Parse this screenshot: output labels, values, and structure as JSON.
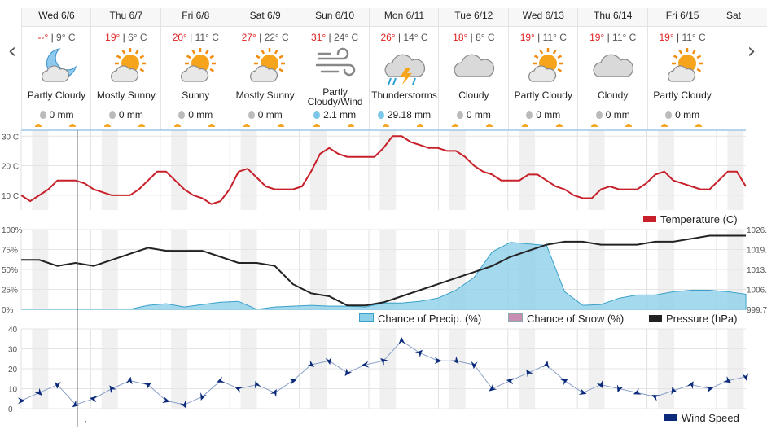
{
  "nav": {
    "prev_label": "‹",
    "next_label": "›"
  },
  "days": [
    {
      "name": "Wed 6/6",
      "hi": "--°",
      "lo": "9° C",
      "icon": "moon-cloud-icon",
      "cond": "Partly Cloudy",
      "precip": "0 mm"
    },
    {
      "name": "Thu 6/7",
      "hi": "19°",
      "lo": "6° C",
      "icon": "sun-icon",
      "cond": "Mostly Sunny",
      "precip": "0 mm"
    },
    {
      "name": "Fri 6/8",
      "hi": "20°",
      "lo": "11° C",
      "icon": "sun-icon",
      "cond": "Sunny",
      "precip": "0 mm"
    },
    {
      "name": "Sat 6/9",
      "hi": "27°",
      "lo": "22° C",
      "icon": "sun-icon",
      "cond": "Mostly Sunny",
      "precip": "0 mm"
    },
    {
      "name": "Sun 6/10",
      "hi": "31°",
      "lo": "24° C",
      "icon": "wind-icon",
      "cond": "Partly Cloudy/Wind",
      "precip": "2.1 mm",
      "wet": true
    },
    {
      "name": "Mon 6/11",
      "hi": "26°",
      "lo": "14° C",
      "icon": "thunderstorm-icon",
      "cond": "Thunderstorms",
      "precip": "29.18 mm",
      "wet": true
    },
    {
      "name": "Tue 6/12",
      "hi": "18°",
      "lo": "8° C",
      "icon": "cloud-icon",
      "cond": "Cloudy",
      "precip": "0 mm"
    },
    {
      "name": "Wed 6/13",
      "hi": "19°",
      "lo": "11° C",
      "icon": "sun-cloud-icon",
      "cond": "Partly Cloudy",
      "precip": "0 mm"
    },
    {
      "name": "Thu 6/14",
      "hi": "19°",
      "lo": "11° C",
      "icon": "cloud-icon",
      "cond": "Cloudy",
      "precip": "0 mm"
    },
    {
      "name": "Fri 6/15",
      "hi": "19°",
      "lo": "11° C",
      "icon": "sun-cloud-icon",
      "cond": "Partly Cloudy",
      "precip": "0 mm"
    },
    {
      "name": "Sat"
    }
  ],
  "temp_chart": {
    "yticks": [
      "30 C",
      "20 C",
      "10 C"
    ],
    "legend": "Temperature (C)",
    "color": "#c8202a"
  },
  "precip_chart": {
    "yticks": [
      "100%",
      "75%",
      "50%",
      "25%",
      "0%"
    ],
    "ryticks": [
      "1026.",
      "1019.",
      "1013.",
      "1006.",
      "999.7"
    ],
    "legend_precip": "Chance of Precip. (%)",
    "legend_snow": "Chance of Snow (%)",
    "legend_pressure": "Pressure (hPa)",
    "precip_color": "#8dd0ea",
    "snow_color": "#c98fb3",
    "pressure_color": "#222222"
  },
  "wind_chart": {
    "yticks": [
      "40",
      "30",
      "20",
      "10",
      "0"
    ],
    "legend": "Wind Speed",
    "color": "#0b2a7a",
    "cursor_arrow": "→"
  },
  "chart_data": [
    {
      "type": "line",
      "name_legend": "Temperature (C)",
      "ylim": [
        5,
        32
      ],
      "x": [
        0,
        0.5,
        1,
        1.5,
        2,
        2.5,
        3,
        3.5,
        4,
        4.5,
        5,
        5.5,
        6,
        6.5,
        7,
        7.5,
        8,
        8.5,
        9,
        9.5,
        10,
        10.5,
        11,
        11.5,
        12,
        12.5,
        13,
        13.5,
        14,
        14.5,
        15,
        15.5,
        16,
        16.5,
        17,
        17.5,
        18,
        18.5,
        19,
        19.5,
        20,
        20.5,
        21,
        21.5,
        22,
        22.5,
        23,
        23.5,
        24,
        24.5,
        25,
        25.5,
        26,
        26.5,
        27,
        27.5,
        28,
        28.5,
        29,
        29.5,
        30,
        30.5,
        31,
        31.5,
        32,
        32.5,
        33,
        33.5,
        34,
        34.5,
        35,
        35.5,
        36,
        36.5,
        37,
        37.5,
        38,
        38.5,
        39,
        39.5,
        40
      ],
      "series": [
        {
          "values": [
            10,
            8,
            10,
            12,
            15,
            15,
            15,
            14,
            12,
            11,
            10,
            10,
            10,
            12,
            15,
            18,
            18,
            15,
            12,
            10,
            9,
            7,
            8,
            12,
            18,
            19,
            16,
            13,
            12,
            12,
            12,
            13,
            18,
            24,
            26,
            24,
            23,
            23,
            23,
            23,
            26,
            30,
            30,
            28,
            27,
            26,
            26,
            25,
            25,
            23,
            20,
            18,
            17,
            15,
            15,
            15,
            17,
            17,
            15,
            13,
            12,
            10,
            9,
            9,
            12,
            13,
            12,
            12,
            12,
            14,
            17,
            18,
            15,
            14,
            13,
            12,
            12,
            15,
            18,
            18,
            13
          ]
        }
      ]
    },
    {
      "type": "area",
      "name_legend": "Chance of Precip. (%)",
      "ylim": [
        0,
        100
      ],
      "x": [
        0,
        1,
        2,
        3,
        4,
        5,
        6,
        7,
        8,
        9,
        10,
        11,
        12,
        13,
        14,
        15,
        16,
        17,
        18,
        19,
        20,
        21,
        22,
        23,
        24,
        25,
        26,
        27,
        28,
        29,
        30,
        31,
        32,
        33,
        34,
        35,
        36,
        37,
        38,
        39,
        40
      ],
      "series": [
        {
          "values": [
            0,
            0,
            0,
            0,
            0,
            0,
            0,
            5,
            7,
            3,
            6,
            9,
            10,
            0,
            3,
            4,
            5,
            4,
            4,
            3,
            8,
            8,
            10,
            14,
            24,
            40,
            72,
            84,
            82,
            80,
            22,
            5,
            6,
            14,
            18,
            18,
            22,
            24,
            24,
            22,
            19
          ]
        }
      ]
    },
    {
      "type": "line",
      "name_legend": "Pressure (hPa)",
      "ylim": [
        999.7,
        1026
      ],
      "x": [
        0,
        1,
        2,
        3,
        4,
        5,
        6,
        7,
        8,
        9,
        10,
        11,
        12,
        13,
        14,
        15,
        16,
        17,
        18,
        19,
        20,
        21,
        22,
        23,
        24,
        25,
        26,
        27,
        28,
        29,
        30,
        31,
        32,
        33,
        34,
        35,
        36,
        37,
        38,
        39,
        40
      ],
      "series": [
        {
          "values": [
            1016,
            1016,
            1014,
            1015,
            1014,
            1016,
            1018,
            1020,
            1019,
            1019,
            1019,
            1017,
            1015,
            1015,
            1014,
            1008,
            1005,
            1004,
            1001,
            1001,
            1002,
            1004,
            1006,
            1008,
            1010,
            1012,
            1014,
            1017,
            1019,
            1021,
            1022,
            1022,
            1021,
            1021,
            1021,
            1022,
            1022,
            1023,
            1024,
            1024,
            1024
          ]
        }
      ]
    },
    {
      "type": "line",
      "name_legend": "Wind Speed",
      "ylim": [
        0,
        40
      ],
      "x": [
        0,
        1,
        2,
        3,
        4,
        5,
        6,
        7,
        8,
        9,
        10,
        11,
        12,
        13,
        14,
        15,
        16,
        17,
        18,
        19,
        20,
        21,
        22,
        23,
        24,
        25,
        26,
        27,
        28,
        29,
        30,
        31,
        32,
        33,
        34,
        35,
        36,
        37,
        38,
        39,
        40
      ],
      "series": [
        {
          "values": [
            4,
            8,
            12,
            2,
            5,
            10,
            14,
            12,
            4,
            2,
            6,
            14,
            10,
            12,
            8,
            14,
            22,
            24,
            18,
            22,
            24,
            34,
            28,
            24,
            24,
            22,
            10,
            14,
            18,
            22,
            14,
            8,
            12,
            10,
            8,
            6,
            9,
            12,
            10,
            14,
            16
          ]
        }
      ]
    }
  ]
}
